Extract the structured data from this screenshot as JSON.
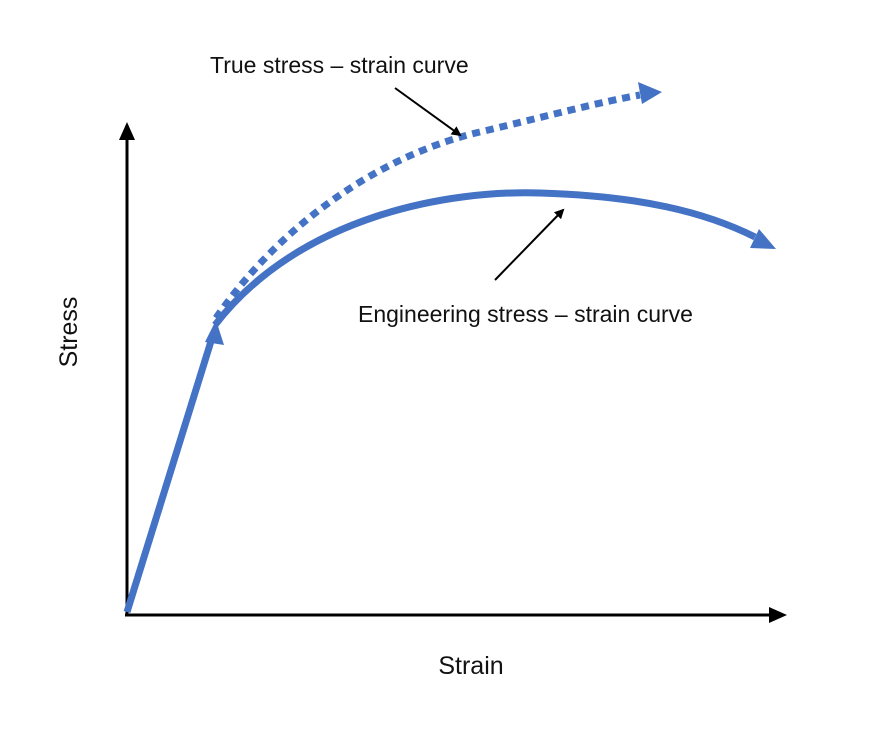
{
  "axes": {
    "x_label": "Strain",
    "y_label": "Stress"
  },
  "annotations": {
    "true_curve": "True stress – strain curve",
    "engineering_curve": "Engineering stress – strain curve"
  }
}
